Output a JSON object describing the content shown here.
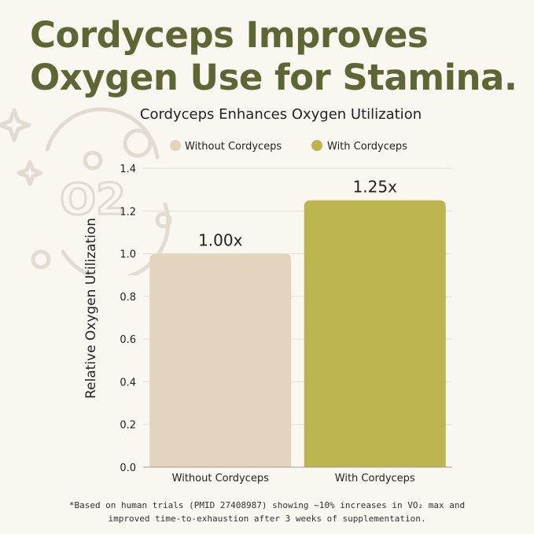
{
  "headline": {
    "line1": "Cordyceps Improves",
    "line2": "Oxygen Use for Stamina."
  },
  "decor": {
    "o2_label": "O2"
  },
  "chart_data": {
    "type": "bar",
    "title": "Cordyceps Enhances Oxygen Utilization",
    "xlabel": "",
    "ylabel": "Relative Oxygen Utilization",
    "categories": [
      "Without Cordyceps",
      "With Cordyceps"
    ],
    "values": [
      1.0,
      1.25
    ],
    "data_labels": [
      "1.00x",
      "1.25x"
    ],
    "colors": [
      "#e3d4bd",
      "#bcb44c"
    ],
    "legend": [
      "Without Cordyceps",
      "With Cordyceps"
    ],
    "legend_position": "top-center",
    "ylim": [
      0,
      1.4
    ],
    "yticks": [
      "0.0",
      "0.2",
      "0.4",
      "0.6",
      "0.8",
      "1.0",
      "1.2",
      "1.4"
    ],
    "grid": true
  },
  "footnote": {
    "line1": "*Based on human trials (PMID 27408987) showing ~10% increases in VO₂ max and",
    "line2": "improved time-to-exhaustion after 3 weeks of supplementation."
  }
}
